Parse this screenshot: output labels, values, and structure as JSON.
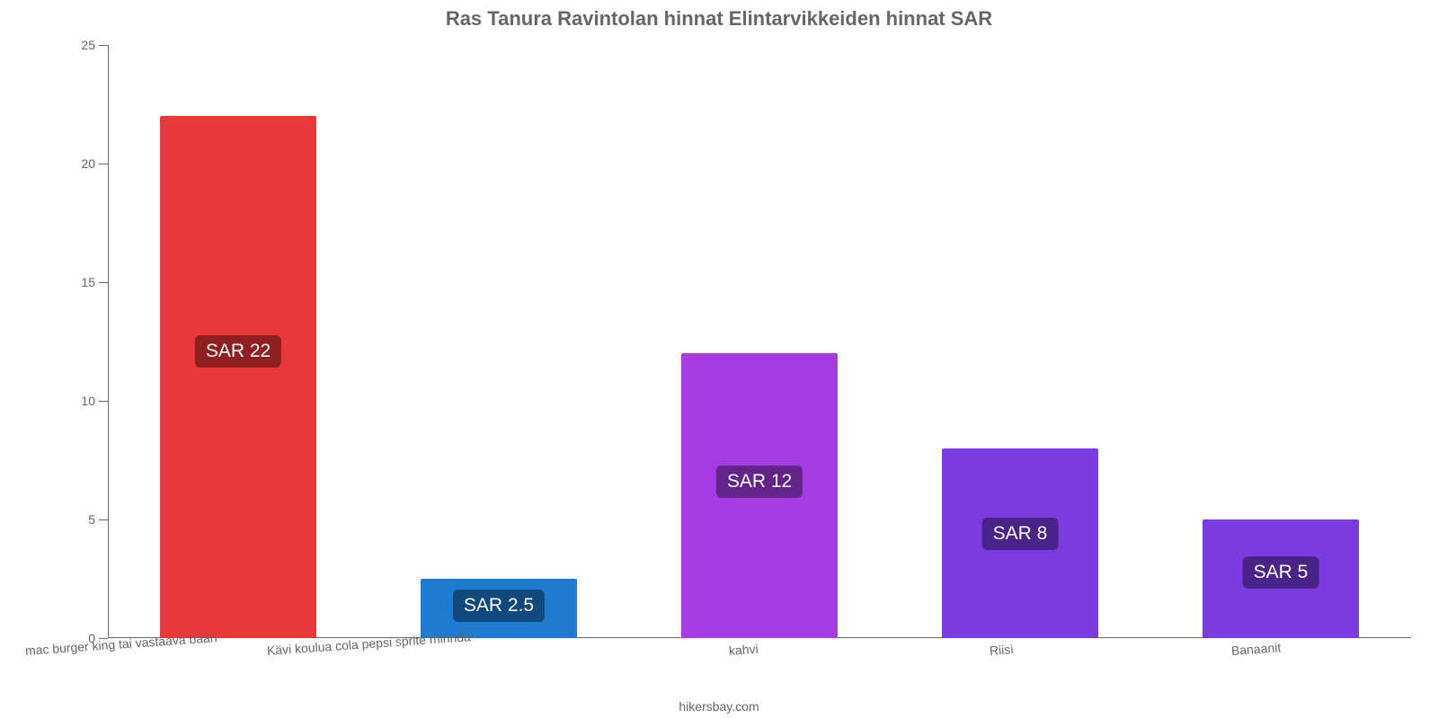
{
  "chart": {
    "type": "bar",
    "title": "Ras Tanura Ravintolan hinnat Elintarvikkeiden hinnat SAR",
    "title_fontsize": 22,
    "title_color": "#666666",
    "footer": "hikersbay.com",
    "footer_color": "#666666",
    "background_color": "#ffffff",
    "axis_color": "#666666",
    "tick_label_color": "#666666",
    "tick_label_fontsize": 14,
    "ylim": [
      0,
      25
    ],
    "ytick_step": 5,
    "yticks": [
      {
        "pos": 0,
        "label": "0"
      },
      {
        "pos": 5,
        "label": "5"
      },
      {
        "pos": 10,
        "label": "10"
      },
      {
        "pos": 15,
        "label": "15"
      },
      {
        "pos": 20,
        "label": "20"
      },
      {
        "pos": 25,
        "label": "25"
      }
    ],
    "value_label_fontsize": 21,
    "value_label_color": "#ffffff",
    "x_label_rotation_deg": -4,
    "categories": [
      "mac burger king tai vastaava baari",
      "Kävi koulua cola pepsi sprite mirinda",
      "kahvi",
      "Riisi",
      "Banaanit"
    ],
    "values": [
      22,
      2.5,
      12,
      8,
      5
    ],
    "value_labels": [
      "SAR 22",
      "SAR 2.5",
      "SAR 12",
      "SAR 8",
      "SAR 5"
    ],
    "bar_colors": [
      "#e8383a",
      "#1f7bd0",
      "#a53be0",
      "#7b3be0",
      "#7b3be0"
    ],
    "value_label_bg": [
      "#8f1f21",
      "#12497c",
      "#62238a",
      "#4a238a",
      "#4a238a"
    ],
    "bar_width_ratio": 0.6
  }
}
